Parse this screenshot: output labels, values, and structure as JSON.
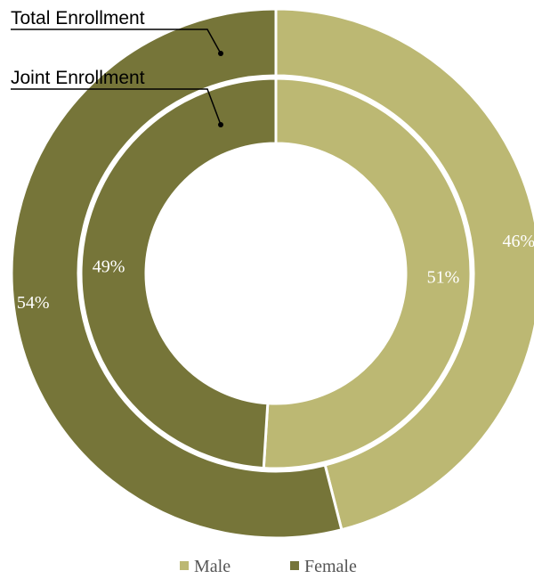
{
  "chart_data": {
    "type": "donut",
    "categories": [
      "Male",
      "Female"
    ],
    "series": [
      {
        "name": "Total Enrollment",
        "ring": "outer",
        "values": [
          46,
          54
        ],
        "labels": [
          "46%",
          "54%"
        ]
      },
      {
        "name": "Joint Enrollment",
        "ring": "inner",
        "values": [
          51,
          49
        ],
        "labels": [
          "51%",
          "49%"
        ]
      }
    ],
    "legend": {
      "position": "bottom",
      "items": [
        {
          "label": "Male",
          "color": "#bcb873"
        },
        {
          "label": "Female",
          "color": "#767539"
        }
      ]
    },
    "colors": {
      "Male": "#bcb873",
      "Female": "#767539"
    }
  }
}
